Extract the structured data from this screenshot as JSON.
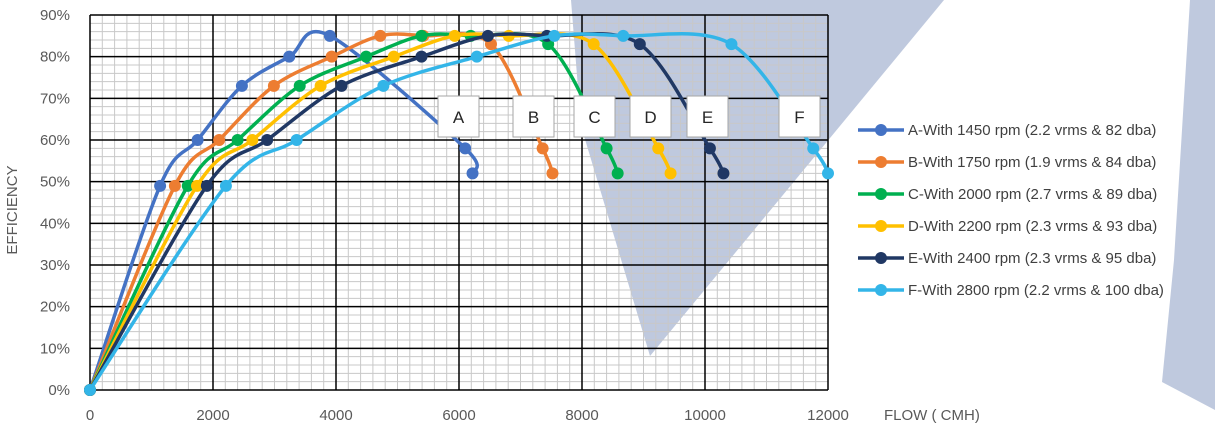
{
  "chart_data": {
    "type": "line",
    "xlabel": "FLOW ( CMH)",
    "ylabel": "EFFICIENCY",
    "xlim": [
      0,
      12000
    ],
    "ylim": [
      0,
      90
    ],
    "x_ticks": [
      "0",
      "2000",
      "4000",
      "6000",
      "8000",
      "10000",
      "12000"
    ],
    "y_ticks": [
      "0%",
      "10%",
      "20%",
      "30%",
      "40%",
      "50%",
      "60%",
      "70%",
      "80%",
      "90%"
    ],
    "grid": true,
    "legend_position": "right",
    "series": [
      {
        "name": "A-With 1450 rpm (2.2 vrms & 82 dba)",
        "label": "A",
        "color": "#4472C4",
        "points": [
          [
            0,
            0
          ],
          [
            1140,
            49
          ],
          [
            1750,
            60
          ],
          [
            2470,
            73
          ],
          [
            3240,
            80
          ],
          [
            3900,
            85
          ],
          [
            6100,
            58
          ],
          [
            6220,
            52
          ]
        ]
      },
      {
        "name": "B-With 1750 rpm (1.9 vrms & 84 dba)",
        "label": "B",
        "color": "#ED7D31",
        "points": [
          [
            0,
            0
          ],
          [
            1380,
            49
          ],
          [
            2100,
            60
          ],
          [
            2990,
            73
          ],
          [
            3930,
            80
          ],
          [
            4720,
            85
          ],
          [
            5420,
            85
          ],
          [
            6520,
            83
          ],
          [
            7360,
            58
          ],
          [
            7520,
            52
          ]
        ]
      },
      {
        "name": "C-With 2000 rpm (2.7 vrms & 89 dba)",
        "label": "C",
        "color": "#00B050",
        "points": [
          [
            0,
            0
          ],
          [
            1590,
            49
          ],
          [
            2400,
            60
          ],
          [
            3410,
            73
          ],
          [
            4490,
            80
          ],
          [
            5390,
            85
          ],
          [
            6190,
            85
          ],
          [
            7450,
            83
          ],
          [
            8400,
            58
          ],
          [
            8580,
            52
          ]
        ]
      },
      {
        "name": "D-With 2200 rpm (2.3 vrms & 93 dba)",
        "label": "D",
        "color": "#FFC000",
        "points": [
          [
            0,
            0
          ],
          [
            1740,
            49
          ],
          [
            2640,
            60
          ],
          [
            3750,
            73
          ],
          [
            4940,
            80
          ],
          [
            5930,
            85
          ],
          [
            6810,
            85
          ],
          [
            8190,
            83
          ],
          [
            9240,
            58
          ],
          [
            9440,
            52
          ]
        ]
      },
      {
        "name": "E-With 2400 rpm (2.3 vrms & 95 dba)",
        "label": "E",
        "color": "#203864",
        "points": [
          [
            0,
            0
          ],
          [
            1900,
            49
          ],
          [
            2880,
            60
          ],
          [
            4090,
            73
          ],
          [
            5390,
            80
          ],
          [
            6470,
            85
          ],
          [
            7430,
            85
          ],
          [
            8940,
            83
          ],
          [
            10080,
            58
          ],
          [
            10300,
            52
          ]
        ]
      },
      {
        "name": "F-With 2800 rpm (2.2 vrms & 100 dba)",
        "label": "F",
        "color": "#33B5E8",
        "points": [
          [
            0,
            0
          ],
          [
            2210,
            49
          ],
          [
            3360,
            60
          ],
          [
            4770,
            73
          ],
          [
            6290,
            80
          ],
          [
            7550,
            85
          ],
          [
            8670,
            85
          ],
          [
            10430,
            83
          ],
          [
            11760,
            58
          ],
          [
            12000,
            52
          ]
        ]
      }
    ]
  }
}
